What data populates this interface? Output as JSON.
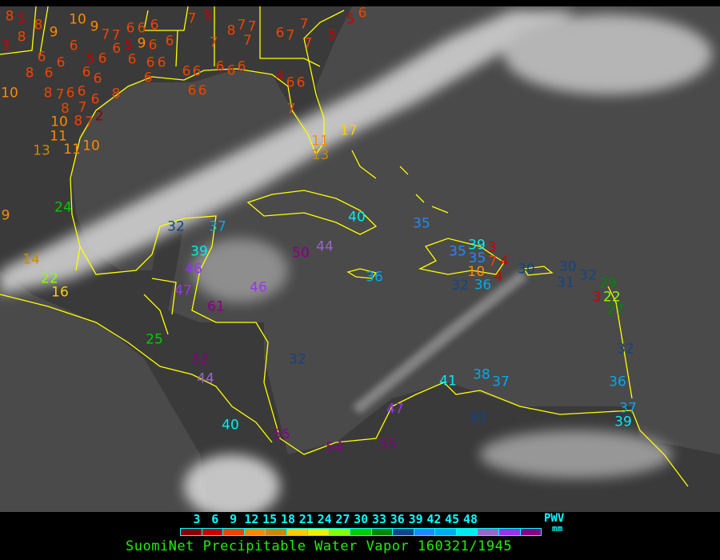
{
  "title": "SuomiNet Precipitable Water Vapor 160321/1945",
  "legend": {
    "unit_label": "PWV",
    "unit": "mm",
    "ticks": [
      "3",
      "6",
      "9",
      "12",
      "15",
      "18",
      "21",
      "24",
      "27",
      "30",
      "33",
      "36",
      "39",
      "42",
      "45",
      "48"
    ],
    "colors": [
      "#8b0000",
      "#cc0000",
      "#ee4400",
      "#ff8800",
      "#cc8800",
      "#ffcc00",
      "#eeee00",
      "#88ff00",
      "#00cc00",
      "#008800",
      "#114488",
      "#2288ff",
      "#00aaee",
      "#00eeee",
      "#9966cc",
      "#9933ee",
      "#880088"
    ]
  },
  "colors": {
    "coastline": "#ffff00",
    "ocean": "#4a4a4a",
    "land": "#3a3a3a",
    "cloud": "#e0e0e0"
  },
  "stations": [
    "8",
    "5",
    "8",
    "9",
    "8",
    "3",
    "10",
    "9",
    "7",
    "7",
    "6",
    "6",
    "6",
    "6",
    "5",
    "6",
    "8",
    "6",
    "6",
    "6",
    "6",
    "5",
    "9",
    "6",
    "6",
    "6",
    "6",
    "6",
    "6",
    "6",
    "6",
    "10",
    "8",
    "7",
    "6",
    "6",
    "8",
    "7",
    "6",
    "8",
    "8",
    "7",
    "2",
    "10",
    "11",
    "11",
    "10",
    "13",
    "7",
    "5",
    "8",
    "7",
    "7",
    "7",
    "7",
    "6",
    "6",
    "6",
    "6",
    "6",
    "6",
    "6",
    "6",
    "7",
    "7",
    "7",
    "5",
    "6",
    "5",
    "4",
    "6",
    "6",
    "7",
    "11",
    "13",
    "17",
    "9",
    "24",
    "32",
    "37",
    "39",
    "46",
    "47",
    "61",
    "46",
    "50",
    "44",
    "40",
    "22",
    "14",
    "16",
    "25",
    "52",
    "44",
    "32",
    "35",
    "35",
    "39",
    "3",
    "35",
    "7",
    "10",
    "36",
    "4",
    "4",
    "32",
    "36",
    "30",
    "30",
    "31",
    "32",
    "29",
    "22",
    "3",
    "27",
    "32",
    "36",
    "41",
    "38",
    "37",
    "47",
    "30",
    "37",
    "39",
    "40",
    "55",
    "54",
    "55"
  ]
}
